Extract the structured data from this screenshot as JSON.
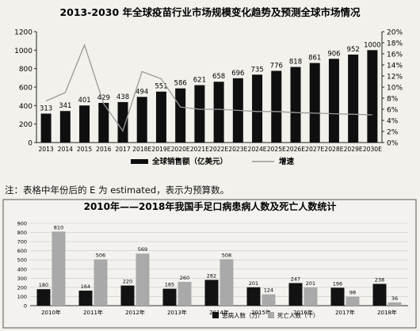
{
  "note": "注：表格中年份后的 E 为 estimated，表示为预算数。",
  "chart_data": [
    {
      "type": "bar",
      "title": "2013-2030 年全球疫苗行业市场规模变化趋势及预测全球市场情况",
      "categories": [
        "2013",
        "2014",
        "2015",
        "2016",
        "2017",
        "2018E",
        "2019E",
        "2020E",
        "2021E",
        "2022E",
        "2023E",
        "2024E",
        "2025E",
        "2026E",
        "2027E",
        "2028E",
        "2029E",
        "2030E"
      ],
      "series": [
        {
          "name": "全球销售额（亿美元）",
          "type": "bar",
          "values": [
            313,
            341,
            401,
            429,
            438,
            494,
            551,
            586,
            621,
            658,
            696,
            735,
            776,
            818,
            861,
            906,
            952,
            1000
          ]
        },
        {
          "name": "增速",
          "type": "line",
          "values": [
            7.5,
            9.0,
            17.6,
            7.0,
            2.1,
            12.8,
            11.5,
            6.4,
            6.0,
            6.0,
            5.8,
            5.6,
            5.6,
            5.4,
            5.3,
            5.2,
            5.1,
            5.0
          ]
        }
      ],
      "ylim": [
        0,
        1200
      ],
      "yticks": [
        0,
        200,
        400,
        600,
        800,
        1000,
        1200
      ],
      "y2lim": [
        0,
        20
      ],
      "y2ticks": [
        "0%",
        "2%",
        "4%",
        "6%",
        "8%",
        "10%",
        "12%",
        "14%",
        "16%",
        "18%",
        "20%"
      ],
      "legend_position": "bottom",
      "grid": false
    },
    {
      "type": "bar",
      "title": "2010年——2018年我国手足口病患病人数及死亡人数统计",
      "categories": [
        "2010年",
        "2011年",
        "2012年",
        "2013年",
        "2014年",
        "2015年",
        "2016年",
        "2017年",
        "2018年"
      ],
      "series": [
        {
          "name": "患病人数（万）",
          "values": [
            180,
            164,
            220,
            185,
            282,
            201,
            247,
            196,
            238
          ]
        },
        {
          "name": "死亡人数（个）",
          "values": [
            810,
            506,
            569,
            260,
            508,
            124,
            201,
            98,
            36
          ]
        }
      ],
      "ylim": [
        0,
        900
      ],
      "yticks": [
        0,
        100,
        200,
        300,
        400,
        500,
        600,
        700,
        800,
        900
      ],
      "legend_position": "bottom-right",
      "grid": true
    }
  ]
}
